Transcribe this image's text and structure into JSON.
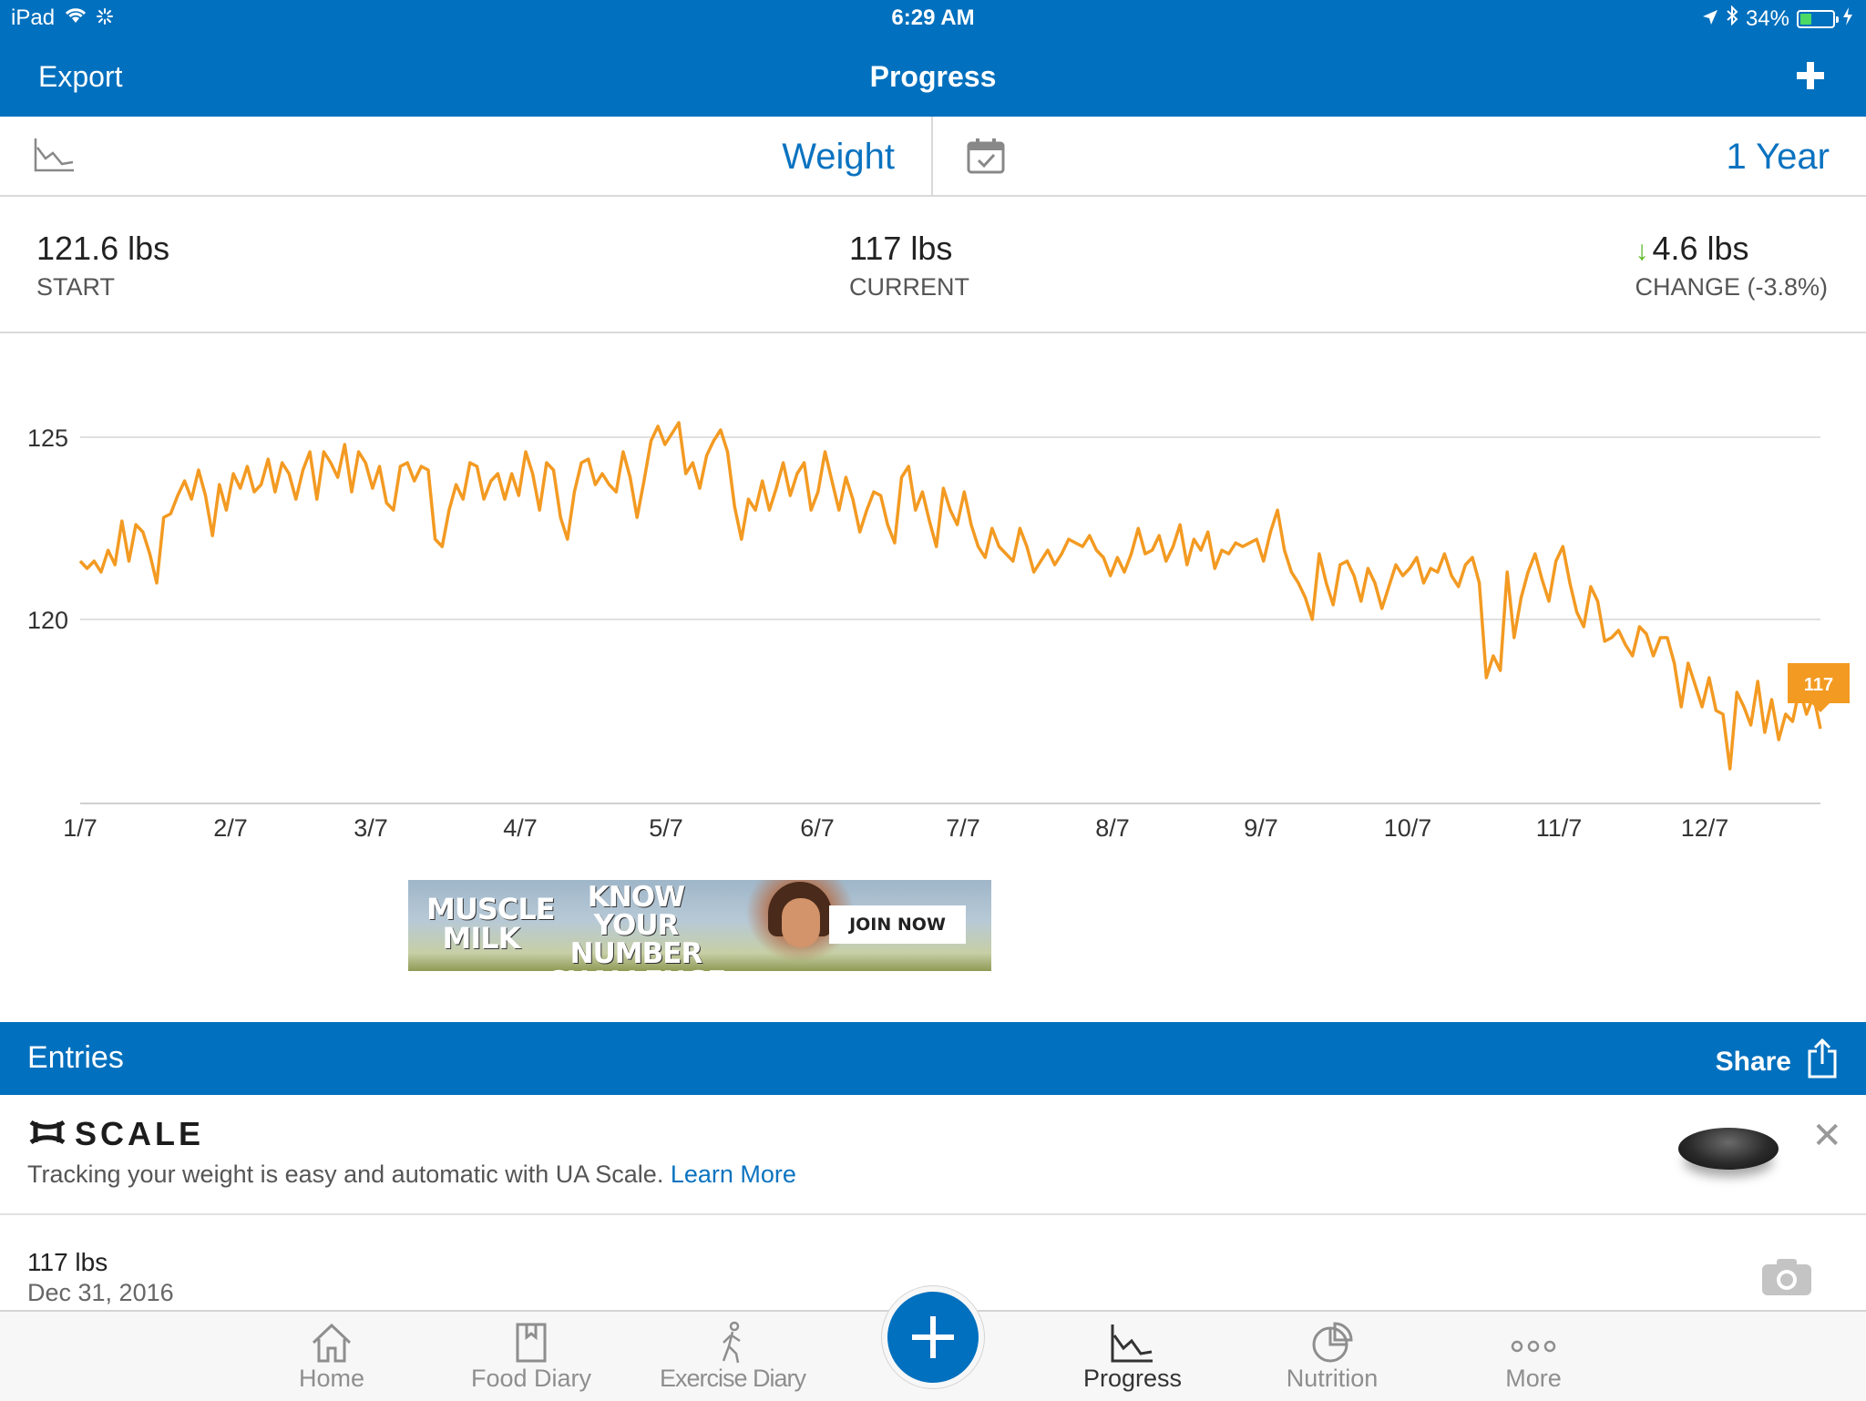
{
  "status_bar": {
    "device": "iPad",
    "time": "6:29 AM",
    "battery": "34%",
    "battery_level": 0.34
  },
  "nav": {
    "export_label": "Export",
    "title": "Progress",
    "add_icon": "plus-icon"
  },
  "selector": {
    "metric": "Weight",
    "range": "1 Year",
    "chart_icon": "line-chart-icon",
    "calendar_icon": "calendar-icon"
  },
  "summary": {
    "start_value": "121.6 lbs",
    "start_label": "START",
    "current_value": "117 lbs",
    "current_label": "CURRENT",
    "change_value": "4.6 lbs",
    "change_label": "CHANGE (-3.8%)",
    "change_arrow_color": "#5cb829"
  },
  "chart_data": {
    "type": "line",
    "x_tick_labels": [
      "1/7",
      "2/7",
      "3/7",
      "4/7",
      "5/7",
      "6/7",
      "7/7",
      "8/7",
      "9/7",
      "10/7",
      "11/7",
      "12/7"
    ],
    "y_tick_labels": [
      "125",
      "120"
    ],
    "ylim": [
      115,
      126.5
    ],
    "grid": true,
    "line_color": "#f39a22",
    "current_marker_label": "117",
    "series": [
      {
        "values": [
          121.6,
          121.4,
          121.6,
          121.3,
          121.9,
          121.5,
          122.7,
          121.6,
          122.6,
          122.4,
          121.8,
          121.0,
          122.8,
          122.9,
          123.4,
          123.8,
          123.3,
          124.1,
          123.4,
          122.3,
          123.7,
          123.0,
          124.0,
          123.6,
          124.2,
          123.5,
          123.7,
          124.4,
          123.5,
          124.3,
          124.0,
          123.3,
          124.1,
          124.6,
          123.3,
          124.6,
          124.3,
          123.9,
          124.8,
          123.5,
          124.6,
          124.3,
          123.6,
          124.2,
          123.2,
          123.0,
          124.2,
          124.3,
          123.8,
          124.2,
          124.1,
          122.2,
          122.0,
          123.0,
          123.7,
          123.3,
          124.3,
          124.2,
          123.3,
          123.8,
          124.0,
          123.3,
          124.0,
          123.4,
          124.6,
          124.0,
          123.0,
          124.3,
          124.1,
          122.8,
          122.2,
          123.5,
          124.3,
          124.4,
          123.7,
          124.0,
          123.7,
          123.5,
          124.6,
          123.9,
          122.8,
          123.8,
          124.9,
          125.3,
          124.8,
          125.1,
          125.4,
          124.0,
          124.3,
          123.6,
          124.5,
          124.9,
          125.2,
          124.6,
          123.1,
          122.2,
          123.3,
          123.0,
          123.8,
          123.0,
          123.6,
          124.3,
          123.4,
          124.0,
          124.3,
          123.0,
          123.5,
          124.6,
          123.8,
          123.0,
          123.9,
          123.3,
          122.4,
          123.0,
          123.5,
          123.4,
          122.6,
          122.1,
          123.9,
          124.2,
          123.0,
          123.5,
          122.7,
          122.0,
          123.6,
          123.0,
          122.6,
          123.5,
          122.6,
          122.0,
          121.7,
          122.5,
          122.0,
          121.8,
          121.6,
          122.5,
          122.0,
          121.3,
          121.6,
          121.9,
          121.5,
          121.8,
          122.2,
          122.1,
          122.0,
          122.3,
          121.9,
          121.7,
          121.2,
          121.7,
          121.3,
          121.8,
          122.5,
          121.8,
          121.9,
          122.3,
          121.6,
          122.0,
          122.6,
          121.5,
          122.2,
          121.9,
          122.4,
          121.4,
          121.9,
          121.8,
          122.1,
          122.0,
          122.1,
          122.2,
          121.6,
          122.4,
          123.0,
          121.9,
          121.3,
          121.0,
          120.6,
          120.0,
          121.8,
          121.0,
          120.4,
          121.5,
          121.6,
          121.2,
          120.5,
          121.4,
          121.0,
          120.3,
          120.9,
          121.5,
          121.2,
          121.4,
          121.7,
          121.0,
          121.4,
          121.3,
          121.8,
          121.2,
          120.9,
          121.5,
          121.7,
          121.0,
          118.4,
          119.0,
          118.6,
          121.3,
          119.5,
          120.6,
          121.3,
          121.8,
          121.1,
          120.5,
          121.6,
          122.0,
          121.0,
          120.2,
          119.8,
          120.9,
          120.5,
          119.4,
          119.5,
          119.7,
          119.3,
          119.0,
          119.8,
          119.6,
          119.0,
          119.5,
          119.5,
          118.8,
          117.6,
          118.8,
          118.2,
          117.6,
          118.4,
          117.5,
          117.4,
          115.9,
          118.0,
          117.6,
          117.1,
          118.3,
          116.9,
          117.8,
          116.7,
          117.4,
          117.2,
          118.1,
          117.4,
          117.9,
          117.0
        ]
      }
    ]
  },
  "ad": {
    "brand": "MUSCLE MILK",
    "headline": "KNOW YOUR NUMBER CHALLENGE",
    "cta": "JOIN NOW"
  },
  "entries_header": {
    "title": "Entries",
    "share_label": "Share",
    "share_icon": "share-icon"
  },
  "promo": {
    "logo_text": "SCALE",
    "logo_icon": "under-armour-icon",
    "text": "Tracking your weight is easy and automatic with UA Scale.",
    "link": "Learn More",
    "close_icon": "close-icon"
  },
  "entry": {
    "weight": "117 lbs",
    "date": "Dec 31, 2016",
    "camera_icon": "camera-icon"
  },
  "tabs": [
    {
      "label": "Home",
      "icon": "home-icon",
      "active": false
    },
    {
      "label": "Food Diary",
      "icon": "book-icon",
      "active": false
    },
    {
      "label": "Exercise Diary",
      "icon": "walking-icon",
      "active": false
    },
    {
      "label": "Progress",
      "icon": "line-chart-icon",
      "active": true
    },
    {
      "label": "Nutrition",
      "icon": "pie-chart-icon",
      "active": false
    },
    {
      "label": "More",
      "icon": "more-icon",
      "active": false
    }
  ],
  "fab_icon": "plus-icon"
}
